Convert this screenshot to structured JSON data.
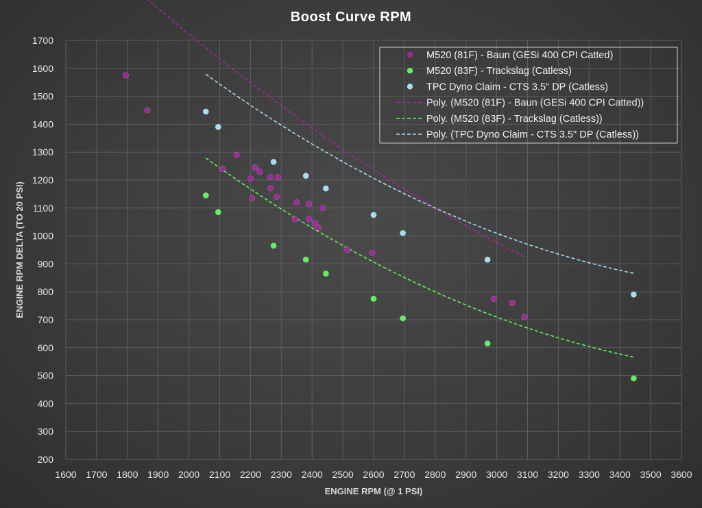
{
  "chart_data": {
    "type": "scatter",
    "title": "Boost Curve RPM",
    "xlabel": "ENGINE RPM (@ 1 PSI)",
    "ylabel": "ENGINE RPM DELTA (TO 20 PSI)",
    "xlim": [
      1600,
      3600
    ],
    "ylim": [
      200,
      1700
    ],
    "xticks": [
      1600,
      1700,
      1800,
      1900,
      2000,
      2100,
      2200,
      2300,
      2400,
      2500,
      2600,
      2700,
      2800,
      2900,
      3000,
      3100,
      3200,
      3300,
      3400,
      3500,
      3600
    ],
    "yticks": [
      200,
      300,
      400,
      500,
      600,
      700,
      800,
      900,
      1000,
      1100,
      1200,
      1300,
      1400,
      1500,
      1600,
      1700
    ],
    "grid": true,
    "legend_position": "top-right",
    "series": [
      {
        "name": "M520 (81F) - Baun (GESi 400 CPI Catted)",
        "color": "#a0289a",
        "x": [
          1795,
          1865,
          2110,
          2155,
          2200,
          2205,
          2215,
          2230,
          2265,
          2265,
          2285,
          2290,
          2345,
          2350,
          2390,
          2390,
          2410,
          2420,
          2435,
          2515,
          2595,
          2990,
          3050,
          3090
        ],
        "y": [
          1575,
          1450,
          1240,
          1290,
          1205,
          1135,
          1245,
          1230,
          1210,
          1170,
          1140,
          1210,
          1060,
          1120,
          1060,
          1115,
          1045,
          1030,
          1100,
          950,
          940,
          775,
          760,
          710
        ],
        "trendline": "Poly. (M520 (81F) - Baun (GESi 400 CPI Catted))",
        "trend_coeffs": [
          0.000158,
          -1.5366,
          4164.3
        ],
        "trend_range": [
          1795,
          3090
        ]
      },
      {
        "name": "M520 (83F) - Trackslag (Catless)",
        "color": "#5ef05e",
        "x": [
          2055,
          2095,
          2275,
          2380,
          2445,
          2600,
          2695,
          2970,
          3445
        ],
        "y": [
          1145,
          1085,
          965,
          915,
          865,
          775,
          705,
          615,
          490
        ],
        "trendline": "Poly. (M520 (83F) - Trackslag (Catless))",
        "trend_coeffs": [
          0.0002018,
          -1.6226,
          3761.0
        ],
        "trend_range": [
          2055,
          3445
        ]
      },
      {
        "name": "TPC Dyno Claim - CTS 3.5\" DP (Catless)",
        "color": "#a8dcf2",
        "x": [
          2055,
          2095,
          2275,
          2380,
          2445,
          2600,
          2695,
          2970,
          3445
        ],
        "y": [
          1445,
          1390,
          1265,
          1215,
          1170,
          1075,
          1010,
          915,
          790
        ],
        "trendline": "Poly. (TPC Dyno Claim - CTS 3.5\" DP (Catless))",
        "trend_coeffs": [
          0.0002018,
          -1.6226,
          4061.0
        ],
        "trend_range": [
          2055,
          3445
        ]
      }
    ]
  }
}
